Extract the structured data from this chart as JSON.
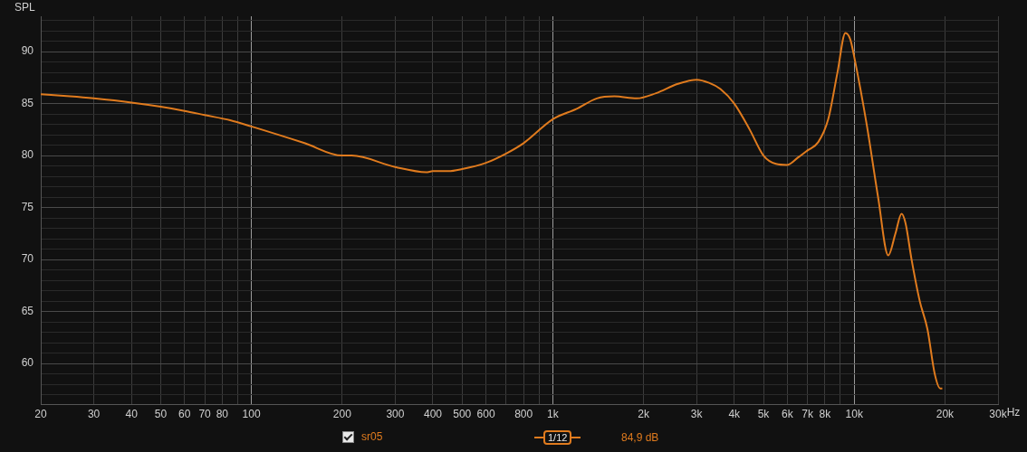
{
  "chart_data": {
    "type": "line",
    "ylabel": "SPL",
    "log": "x",
    "grid": true,
    "marker": "none",
    "legend": "bottom",
    "xlim": [
      20,
      30000
    ],
    "ylim": [
      56.1,
      93.4
    ],
    "xticks": [
      20,
      30,
      40,
      50,
      60,
      70,
      80,
      {
        "value": 90,
        "label": null
      },
      100,
      200,
      300,
      400,
      500,
      600,
      {
        "value": 700,
        "label": null
      },
      800,
      {
        "value": 900,
        "label": null
      },
      {
        "value": 1000,
        "label": "1k"
      },
      {
        "value": 2000,
        "label": "2k"
      },
      {
        "value": 3000,
        "label": "3k"
      },
      {
        "value": 4000,
        "label": "4k"
      },
      {
        "value": 5000,
        "label": "5k"
      },
      {
        "value": 6000,
        "label": "6k"
      },
      {
        "value": 7000,
        "label": "7k"
      },
      {
        "value": 8000,
        "label": "8k"
      },
      {
        "value": 9000,
        "label": null
      },
      {
        "value": 10000,
        "label": "10k"
      },
      {
        "value": 20000,
        "label": "20k"
      },
      {
        "value": 30000,
        "label": "30k"
      }
    ],
    "xlabel": "Hz",
    "yticks": [
      {
        "value": 57,
        "label": null
      },
      {
        "value": 58,
        "label": null
      },
      {
        "value": 59,
        "label": null
      },
      60,
      {
        "value": 61,
        "label": null
      },
      {
        "value": 62,
        "label": null
      },
      {
        "value": 63,
        "label": null
      },
      {
        "value": 64,
        "label": null
      },
      65,
      {
        "value": 66,
        "label": null
      },
      {
        "value": 67,
        "label": null
      },
      {
        "value": 68,
        "label": null
      },
      {
        "value": 69,
        "label": null
      },
      70,
      {
        "value": 71,
        "label": null
      },
      {
        "value": 72,
        "label": null
      },
      {
        "value": 73,
        "label": null
      },
      {
        "value": 74,
        "label": null
      },
      75,
      {
        "value": 76,
        "label": null
      },
      {
        "value": 77,
        "label": null
      },
      {
        "value": 78,
        "label": null
      },
      {
        "value": 79,
        "label": null
      },
      80,
      {
        "value": 81,
        "label": null
      },
      {
        "value": 82,
        "label": null
      },
      {
        "value": 83,
        "label": null
      },
      {
        "value": 84,
        "label": null
      },
      85,
      {
        "value": 86,
        "label": null
      },
      {
        "value": 87,
        "label": null
      },
      {
        "value": 88,
        "label": null
      },
      {
        "value": 89,
        "label": null
      },
      90,
      {
        "value": 91,
        "label": null
      },
      {
        "value": 92,
        "label": null
      },
      {
        "value": 93,
        "label": null
      }
    ],
    "annotations": [
      "1/12",
      "84,9 dB"
    ],
    "series": [
      {
        "name": "sr05",
        "color": "#e07b1e",
        "x": [
          20,
          25,
          30,
          40,
          50,
          60,
          70,
          85,
          100,
          150,
          200,
          215,
          300,
          380,
          400,
          450,
          500,
          600,
          700,
          800,
          1000,
          1200,
          1400,
          1600,
          1900,
          2200,
          2600,
          3000,
          3300,
          3600,
          4000,
          4500,
          5000,
          5500,
          6000,
          6500,
          7000,
          7600,
          8200,
          8800,
          9350,
          9700,
          10000,
          11000,
          12000,
          12970,
          13700,
          14360,
          14800,
          15500,
          16500,
          17500,
          18500,
          19300,
          19600
        ],
        "values": [
          85.9,
          85.7,
          85.5,
          85.1,
          84.7,
          84.3,
          83.9,
          83.4,
          82.8,
          81.2,
          80.0,
          80.0,
          78.9,
          78.4,
          78.5,
          78.5,
          78.7,
          79.3,
          80.2,
          81.2,
          83.5,
          84.5,
          85.5,
          85.7,
          85.5,
          86.0,
          86.9,
          87.3,
          87.0,
          86.4,
          85.0,
          82.5,
          80.0,
          79.2,
          79.1,
          79.8,
          80.5,
          81.3,
          83.5,
          88.0,
          91.8,
          91.2,
          89.5,
          83.0,
          76.0,
          70.4,
          72.5,
          74.4,
          73.5,
          70.0,
          66.0,
          63.3,
          59.0,
          57.6,
          57.6
        ]
      }
    ]
  }
}
